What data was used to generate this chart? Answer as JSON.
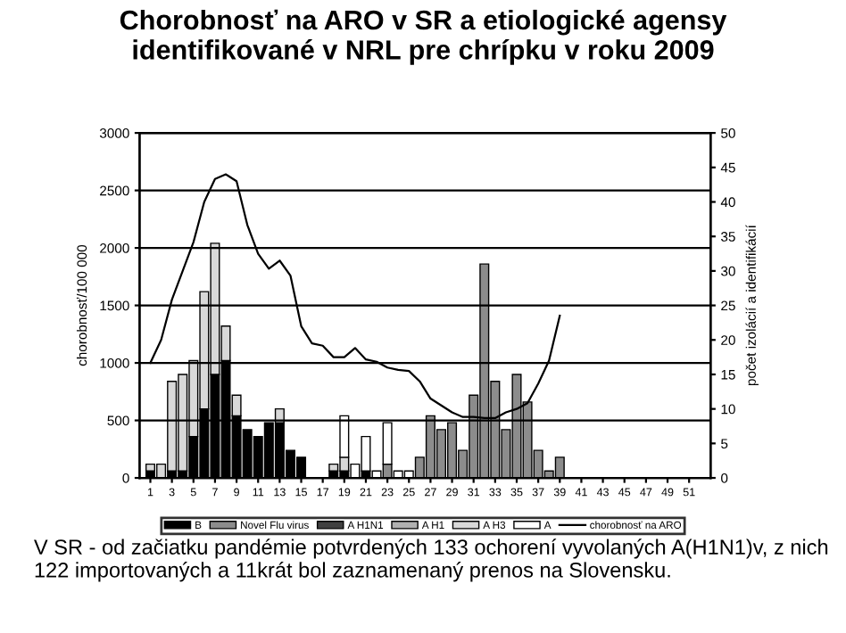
{
  "chart_data": {
    "type": "bar",
    "stacked": true,
    "title": "Chorobnosť na ARO v SR a etiologické agensy\nidentifikované v NRL pre chrípku v roku 2009",
    "ylabel": "chorobnosť/100 000",
    "y2label": "počet izolácií a identifikácií",
    "x": [
      1,
      2,
      3,
      4,
      5,
      6,
      7,
      8,
      9,
      10,
      11,
      12,
      13,
      14,
      15,
      16,
      17,
      18,
      19,
      20,
      21,
      22,
      23,
      24,
      25,
      26,
      27,
      28,
      29,
      30,
      31,
      32,
      33,
      34,
      35,
      36,
      37,
      38,
      39,
      40,
      41,
      42,
      43,
      44,
      45,
      46,
      47,
      48,
      49,
      50,
      51,
      52
    ],
    "xlim": [
      0,
      53
    ],
    "xticks": [
      1,
      3,
      5,
      7,
      9,
      11,
      13,
      15,
      17,
      19,
      21,
      23,
      25,
      27,
      29,
      31,
      33,
      35,
      37,
      39,
      41,
      43,
      45,
      47,
      49,
      51
    ],
    "ylim": [
      0,
      3000
    ],
    "yticks": [
      0,
      500,
      1000,
      1500,
      2000,
      2500,
      3000
    ],
    "y2lim": [
      0,
      50
    ],
    "y2ticks": [
      0,
      5,
      10,
      15,
      20,
      25,
      30,
      35,
      40,
      45,
      50
    ],
    "grid": "y",
    "legend": "bottom",
    "series": [
      {
        "name": "B",
        "color": "#000000",
        "axis": "y2",
        "values": [
          1,
          0,
          1,
          1,
          6,
          10,
          15,
          17,
          9,
          7,
          6,
          8,
          8,
          4,
          3,
          0,
          0,
          1,
          1,
          0,
          1,
          0,
          0,
          0,
          0,
          0,
          0,
          0,
          0,
          0,
          0,
          0,
          0,
          0,
          0,
          0,
          0,
          0,
          0,
          0,
          0,
          0,
          0,
          0,
          0,
          0,
          0,
          0,
          0,
          0,
          0,
          0
        ]
      },
      {
        "name": "Novel Flu virus",
        "color": "#8c8c8c",
        "axis": "y2",
        "values": [
          0,
          0,
          0,
          0,
          0,
          0,
          0,
          0,
          0,
          0,
          0,
          0,
          0,
          0,
          0,
          0,
          0,
          0,
          0,
          0,
          0,
          0,
          2,
          0,
          0,
          3,
          9,
          7,
          8,
          4,
          12,
          31,
          14,
          7,
          15,
          11,
          4,
          1,
          3,
          0,
          0,
          0,
          0,
          0,
          0,
          0,
          0,
          0,
          0,
          0,
          0,
          0
        ]
      },
      {
        "name": "A H1N1",
        "color": "#404040",
        "axis": "y2",
        "values": [
          null,
          null,
          null,
          null,
          null,
          null,
          null,
          null,
          null,
          null,
          null,
          null,
          null,
          null,
          null,
          null,
          null,
          null,
          null,
          null,
          null,
          null,
          null,
          null,
          null,
          null,
          null,
          null,
          null,
          null,
          null,
          null,
          null,
          null,
          null,
          null,
          null,
          null,
          null,
          null,
          null,
          null,
          null,
          null,
          null,
          null,
          null,
          null,
          null,
          null,
          null,
          null
        ]
      },
      {
        "name": "A H1",
        "color": "#b0b0b0",
        "axis": "y2",
        "values": [
          null,
          null,
          null,
          null,
          null,
          null,
          null,
          null,
          null,
          null,
          null,
          null,
          null,
          null,
          null,
          null,
          null,
          null,
          null,
          null,
          null,
          null,
          null,
          null,
          null,
          null,
          null,
          null,
          null,
          null,
          null,
          null,
          null,
          null,
          null,
          null,
          null,
          null,
          null,
          null,
          null,
          null,
          null,
          null,
          null,
          null,
          null,
          null,
          null,
          null,
          null,
          null
        ]
      },
      {
        "name": "A H3",
        "color": "#d8d8d8",
        "axis": "y2",
        "values": [
          1,
          2,
          13,
          14,
          11,
          17,
          19,
          5,
          3,
          0,
          0,
          0,
          2,
          0,
          0,
          0,
          0,
          1,
          2,
          0,
          0,
          0,
          0,
          0,
          0,
          0,
          0,
          0,
          0,
          0,
          0,
          0,
          0,
          0,
          0,
          0,
          0,
          0,
          0,
          0,
          0,
          0,
          0,
          0,
          0,
          0,
          0,
          0,
          0,
          0,
          0,
          0
        ]
      },
      {
        "name": "A",
        "color": "#ffffff",
        "axis": "y2",
        "values": [
          0,
          0,
          0,
          0,
          0,
          0,
          0,
          0,
          0,
          0,
          0,
          0,
          0,
          0,
          0,
          0,
          0,
          0,
          6,
          2,
          5,
          1,
          6,
          1,
          1,
          0,
          0,
          0,
          0,
          0,
          0,
          0,
          0,
          0,
          0,
          0,
          0,
          0,
          0,
          0,
          0,
          0,
          0,
          0,
          0,
          0,
          0,
          0,
          0,
          0,
          0,
          0
        ]
      },
      {
        "name": "chorobnosť na ARO",
        "type": "line",
        "color": "#000000",
        "x": [
          1,
          2,
          3,
          4,
          5,
          6,
          7,
          8,
          9,
          10,
          11,
          12,
          13,
          14,
          15,
          16,
          17,
          18,
          19,
          20,
          21,
          22,
          23,
          24,
          25,
          26,
          27,
          28,
          29,
          30,
          31,
          32,
          33,
          34,
          35,
          36,
          37,
          38,
          39
        ],
        "values": [
          1000,
          1200,
          1550,
          1800,
          2050,
          2400,
          2600,
          2640,
          2580,
          2200,
          1950,
          1820,
          1890,
          1760,
          1320,
          1170,
          1150,
          1050,
          1050,
          1130,
          1030,
          1010,
          960,
          940,
          930,
          840,
          690,
          630,
          570,
          530,
          530,
          520,
          520,
          570,
          600,
          650,
          820,
          1020,
          1410
        ]
      }
    ],
    "annotations": [
      "V SR - od začiatku pandémie potvrdených 133 ochorení vyvolaných A(H1N1)v, z nich 122 importovaných a 11krát bol zaznamenaný prenos na Slovensku."
    ]
  }
}
